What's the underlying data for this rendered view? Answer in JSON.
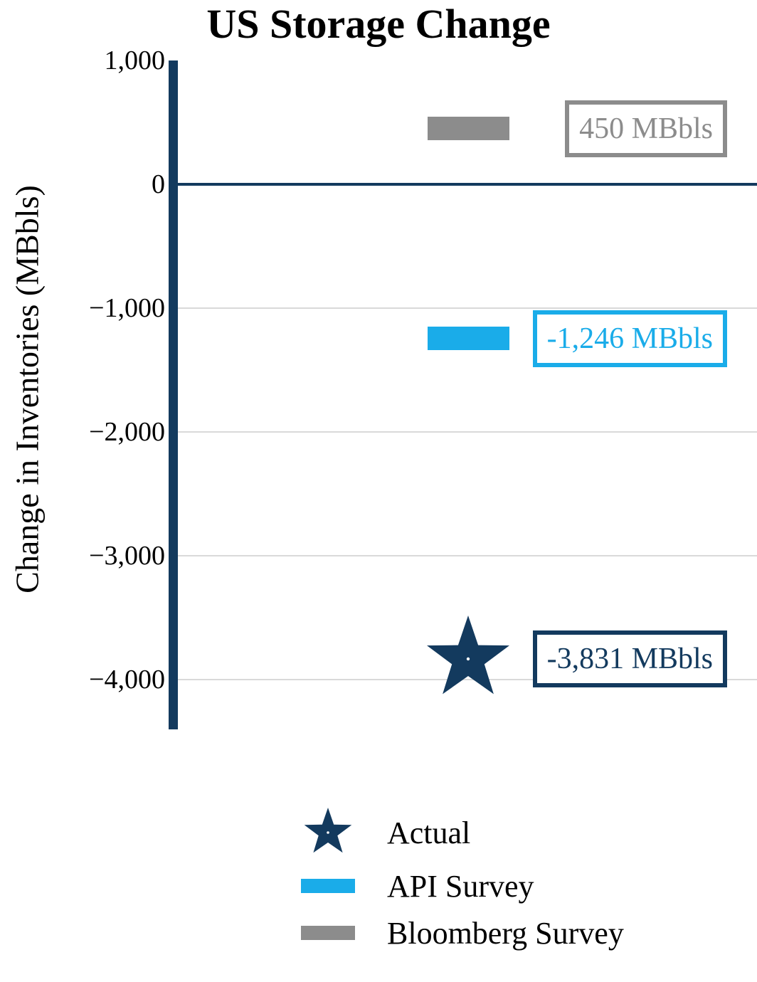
{
  "chart_data": {
    "type": "scatter",
    "title": "US Storage Change",
    "ylabel": "Change in Inventories (MBbls)",
    "ylim": [
      -4400,
      1000
    ],
    "grid": "horizontal gridlines at negative ticks, dark zero line",
    "legend_position": "bottom",
    "yticks": [
      {
        "value": 1000,
        "label": "1,000"
      },
      {
        "value": 0,
        "label": "0"
      },
      {
        "value": -1000,
        "label": "−1,000"
      },
      {
        "value": -2000,
        "label": "−2,000"
      },
      {
        "value": -3000,
        "label": "−3,000"
      },
      {
        "value": -4000,
        "label": "−4,000"
      }
    ],
    "series": [
      {
        "name": "Actual",
        "marker": "star",
        "value": -3831,
        "label": "-3,831 MBbls",
        "color": "#133a5e"
      },
      {
        "name": "API Survey",
        "marker": "bar",
        "value": -1246,
        "label": "-1,246 MBbls",
        "color": "#1aace9"
      },
      {
        "name": "Bloomberg Survey",
        "marker": "bar",
        "value": 450,
        "label": "450 MBbls",
        "color": "#8c8c8c"
      }
    ],
    "legend": {
      "position": "bottom",
      "entries": [
        "Actual",
        "API Survey",
        "Bloomberg Survey"
      ]
    }
  },
  "colors": {
    "axis": "#133a5e",
    "gridline": "#d9d9d9",
    "background": "#ffffff",
    "text": "#000000"
  }
}
